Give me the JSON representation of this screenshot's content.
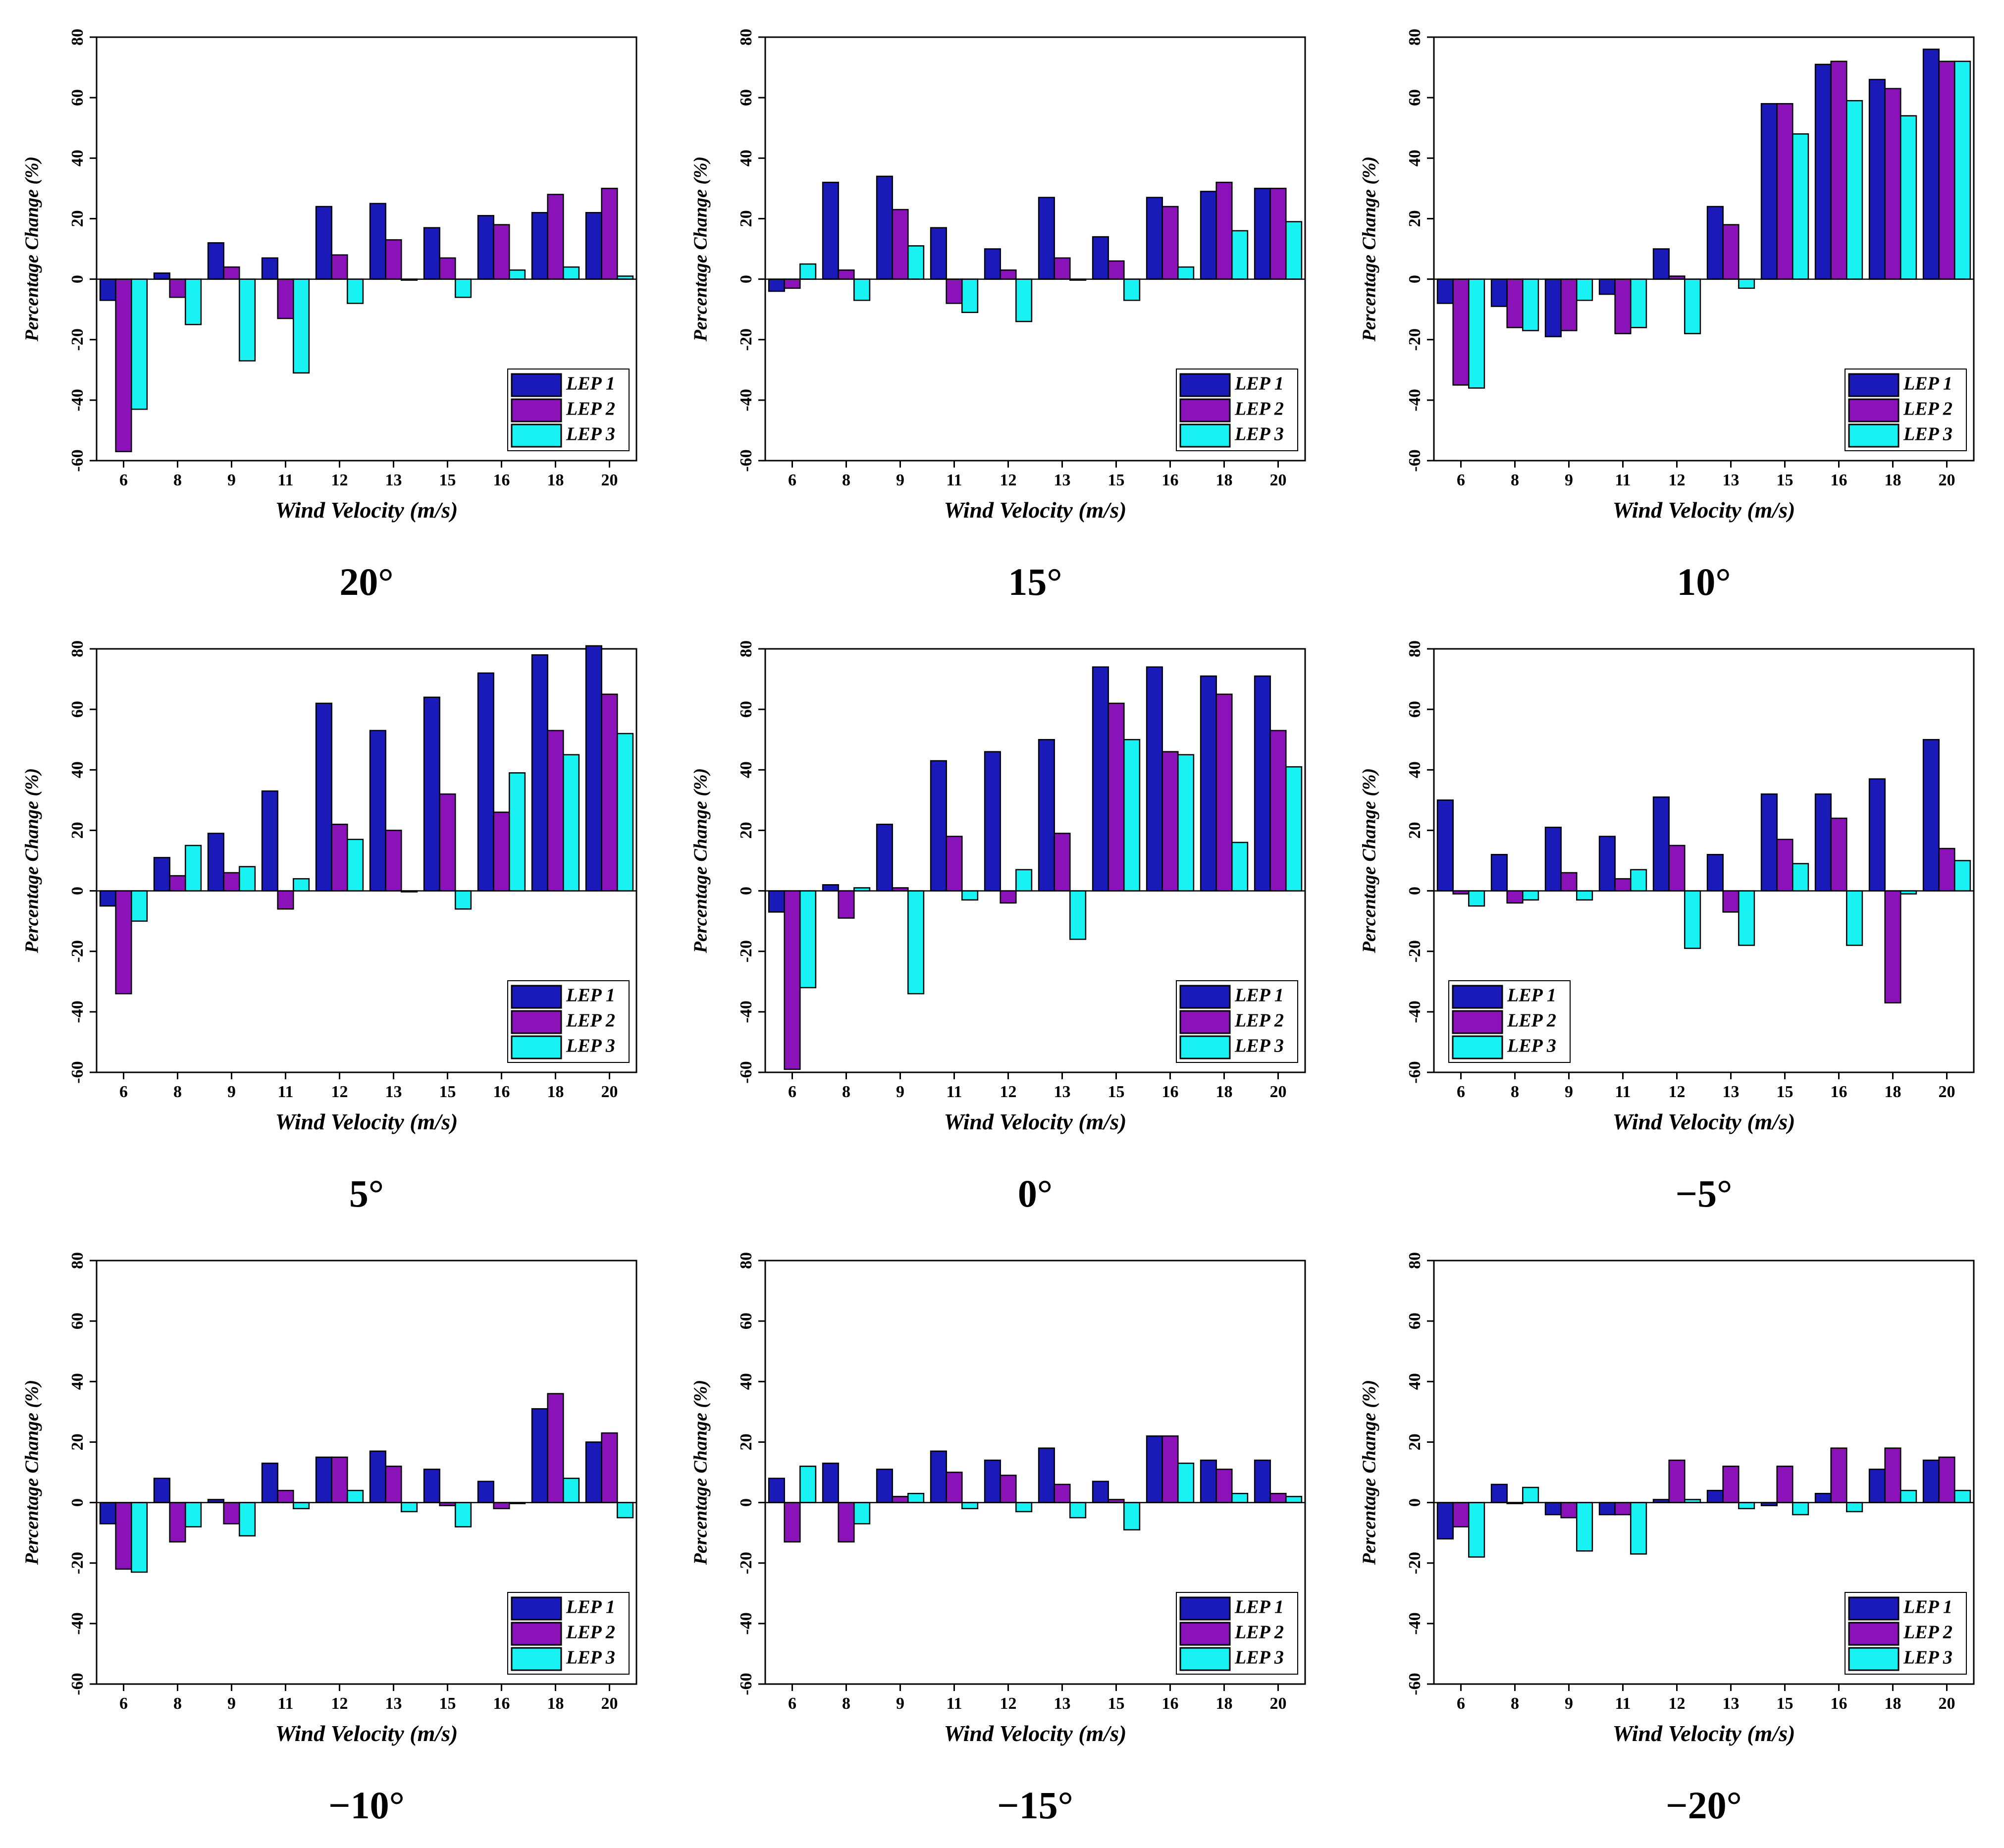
{
  "colors": {
    "LEP 1": "#1a1ab8",
    "LEP 2": "#8a12b8",
    "LEP 3": "#18f2f2"
  },
  "chart_data": [
    {
      "type": "bar",
      "caption": "20°",
      "xlabel": "Wind Velocity (m/s)",
      "ylabel": "Percentage Change (%)",
      "ylim": [
        -60,
        80
      ],
      "yticks": [
        80,
        60,
        40,
        20,
        0,
        -20,
        -40,
        -60
      ],
      "categories": [
        "6",
        "8",
        "9",
        "11",
        "12",
        "13",
        "15",
        "16",
        "18",
        "20"
      ],
      "series": [
        {
          "name": "LEP 1",
          "values": [
            -7,
            2,
            12,
            7,
            24,
            25,
            17,
            21,
            22,
            22
          ]
        },
        {
          "name": "LEP 2",
          "values": [
            -57,
            -6,
            4,
            -13,
            8,
            13,
            7,
            18,
            28,
            30
          ]
        },
        {
          "name": "LEP 3",
          "values": [
            -43,
            -15,
            -27,
            -31,
            -8,
            0,
            -6,
            3,
            4,
            1
          ]
        }
      ],
      "legend_position": "bottom-right"
    },
    {
      "type": "bar",
      "caption": "15°",
      "xlabel": "Wind Velocity (m/s)",
      "ylabel": "Percentage Change (%)",
      "ylim": [
        -60,
        80
      ],
      "yticks": [
        80,
        60,
        40,
        20,
        0,
        -20,
        -40,
        -60
      ],
      "categories": [
        "6",
        "8",
        "9",
        "11",
        "12",
        "13",
        "15",
        "16",
        "18",
        "20"
      ],
      "series": [
        {
          "name": "LEP 1",
          "values": [
            -4,
            32,
            34,
            17,
            10,
            27,
            14,
            27,
            29,
            30
          ]
        },
        {
          "name": "LEP 2",
          "values": [
            -3,
            3,
            23,
            -8,
            3,
            7,
            6,
            24,
            32,
            30
          ]
        },
        {
          "name": "LEP 3",
          "values": [
            5,
            -7,
            11,
            -11,
            -14,
            0,
            -7,
            4,
            16,
            19
          ]
        }
      ],
      "legend_position": "bottom-right"
    },
    {
      "type": "bar",
      "caption": "10°",
      "xlabel": "Wind Velocity (m/s)",
      "ylabel": "Percentage Change (%)",
      "ylim": [
        -60,
        80
      ],
      "yticks": [
        80,
        60,
        40,
        20,
        0,
        -20,
        -40,
        -60
      ],
      "categories": [
        "6",
        "8",
        "9",
        "11",
        "12",
        "13",
        "15",
        "16",
        "18",
        "20"
      ],
      "series": [
        {
          "name": "LEP 1",
          "values": [
            -8,
            -9,
            -19,
            -5,
            10,
            24,
            58,
            71,
            66,
            76
          ]
        },
        {
          "name": "LEP 2",
          "values": [
            -35,
            -16,
            -17,
            -18,
            1,
            18,
            58,
            72,
            63,
            72
          ]
        },
        {
          "name": "LEP 3",
          "values": [
            -36,
            -17,
            -7,
            -16,
            -18,
            -3,
            48,
            59,
            54,
            72
          ]
        }
      ],
      "legend_position": "bottom-right"
    },
    {
      "type": "bar",
      "caption": "5°",
      "xlabel": "Wind Velocity (m/s)",
      "ylabel": "Percentage Change (%)",
      "ylim": [
        -60,
        80
      ],
      "yticks": [
        80,
        60,
        40,
        20,
        0,
        -20,
        -40,
        -60
      ],
      "categories": [
        "6",
        "8",
        "9",
        "11",
        "12",
        "13",
        "15",
        "16",
        "18",
        "20"
      ],
      "series": [
        {
          "name": "LEP 1",
          "values": [
            -5,
            11,
            19,
            33,
            62,
            53,
            64,
            72,
            78,
            81
          ]
        },
        {
          "name": "LEP 2",
          "values": [
            -34,
            5,
            6,
            -6,
            22,
            20,
            32,
            26,
            53,
            65
          ]
        },
        {
          "name": "LEP 3",
          "values": [
            -10,
            15,
            8,
            4,
            17,
            0,
            -6,
            39,
            45,
            52
          ]
        }
      ],
      "legend_position": "bottom-right"
    },
    {
      "type": "bar",
      "caption": "0°",
      "xlabel": "Wind Velocity (m/s)",
      "ylabel": "Percentage Change (%)",
      "ylim": [
        -60,
        80
      ],
      "yticks": [
        80,
        60,
        40,
        20,
        0,
        -20,
        -40,
        -60
      ],
      "categories": [
        "6",
        "8",
        "9",
        "11",
        "12",
        "13",
        "15",
        "16",
        "18",
        "20"
      ],
      "series": [
        {
          "name": "LEP 1",
          "values": [
            -7,
            2,
            22,
            43,
            46,
            50,
            74,
            74,
            71,
            71
          ]
        },
        {
          "name": "LEP 2",
          "values": [
            -59,
            -9,
            1,
            18,
            -4,
            19,
            62,
            46,
            65,
            53
          ]
        },
        {
          "name": "LEP 3",
          "values": [
            -32,
            1,
            -34,
            -3,
            7,
            -16,
            50,
            45,
            16,
            41
          ]
        }
      ],
      "legend_position": "bottom-right"
    },
    {
      "type": "bar",
      "caption": "−5°",
      "xlabel": "Wind Velocity (m/s)",
      "ylabel": "Percentage Change (%)",
      "ylim": [
        -60,
        80
      ],
      "yticks": [
        80,
        60,
        40,
        20,
        0,
        -20,
        -40,
        -60
      ],
      "categories": [
        "6",
        "8",
        "9",
        "11",
        "12",
        "13",
        "15",
        "16",
        "18",
        "20"
      ],
      "series": [
        {
          "name": "LEP 1",
          "values": [
            30,
            12,
            21,
            18,
            31,
            12,
            32,
            32,
            37,
            50
          ]
        },
        {
          "name": "LEP 2",
          "values": [
            -1,
            -4,
            6,
            4,
            15,
            -7,
            17,
            24,
            -37,
            14
          ]
        },
        {
          "name": "LEP 3",
          "values": [
            -5,
            -3,
            -3,
            7,
            -19,
            -18,
            9,
            -18,
            -1,
            10
          ]
        }
      ],
      "legend_position": "bottom-left"
    },
    {
      "type": "bar",
      "caption": "−10°",
      "xlabel": "Wind Velocity (m/s)",
      "ylabel": "Percentage Change (%)",
      "ylim": [
        -60,
        80
      ],
      "yticks": [
        80,
        60,
        40,
        20,
        0,
        -20,
        -40,
        -60
      ],
      "categories": [
        "6",
        "8",
        "9",
        "11",
        "12",
        "13",
        "15",
        "16",
        "18",
        "20"
      ],
      "series": [
        {
          "name": "LEP 1",
          "values": [
            -7,
            8,
            1,
            13,
            15,
            17,
            11,
            7,
            31,
            20
          ]
        },
        {
          "name": "LEP 2",
          "values": [
            -22,
            -13,
            -7,
            4,
            15,
            12,
            -1,
            -2,
            36,
            23
          ]
        },
        {
          "name": "LEP 3",
          "values": [
            -23,
            -8,
            -11,
            -2,
            4,
            -3,
            -8,
            0,
            8,
            -5
          ]
        }
      ],
      "legend_position": "bottom-right"
    },
    {
      "type": "bar",
      "caption": "−15°",
      "xlabel": "Wind Velocity (m/s)",
      "ylabel": "Percentage Change (%)",
      "ylim": [
        -60,
        80
      ],
      "yticks": [
        80,
        60,
        40,
        20,
        0,
        -20,
        -40,
        -60
      ],
      "categories": [
        "6",
        "8",
        "9",
        "11",
        "12",
        "13",
        "15",
        "16",
        "18",
        "20"
      ],
      "series": [
        {
          "name": "LEP 1",
          "values": [
            8,
            13,
            11,
            17,
            14,
            18,
            7,
            22,
            14,
            14
          ]
        },
        {
          "name": "LEP 2",
          "values": [
            -13,
            -13,
            2,
            10,
            9,
            6,
            1,
            22,
            11,
            3
          ]
        },
        {
          "name": "LEP 3",
          "values": [
            12,
            -7,
            3,
            -2,
            -3,
            -5,
            -9,
            13,
            3,
            2
          ]
        }
      ],
      "legend_position": "bottom-right"
    },
    {
      "type": "bar",
      "caption": "−20°",
      "xlabel": "Wind Velocity (m/s)",
      "ylabel": "Percentage Change (%)",
      "ylim": [
        -60,
        80
      ],
      "yticks": [
        80,
        60,
        40,
        20,
        0,
        -20,
        -40,
        -60
      ],
      "categories": [
        "6",
        "8",
        "9",
        "11",
        "12",
        "13",
        "15",
        "16",
        "18",
        "20"
      ],
      "series": [
        {
          "name": "LEP 1",
          "values": [
            -12,
            6,
            -4,
            -4,
            1,
            4,
            -1,
            3,
            11,
            14
          ]
        },
        {
          "name": "LEP 2",
          "values": [
            -8,
            0,
            -5,
            -4,
            14,
            12,
            12,
            18,
            18,
            15
          ]
        },
        {
          "name": "LEP 3",
          "values": [
            -18,
            5,
            -16,
            -17,
            1,
            -2,
            -4,
            -3,
            4,
            4
          ]
        }
      ],
      "legend_position": "bottom-right"
    }
  ]
}
